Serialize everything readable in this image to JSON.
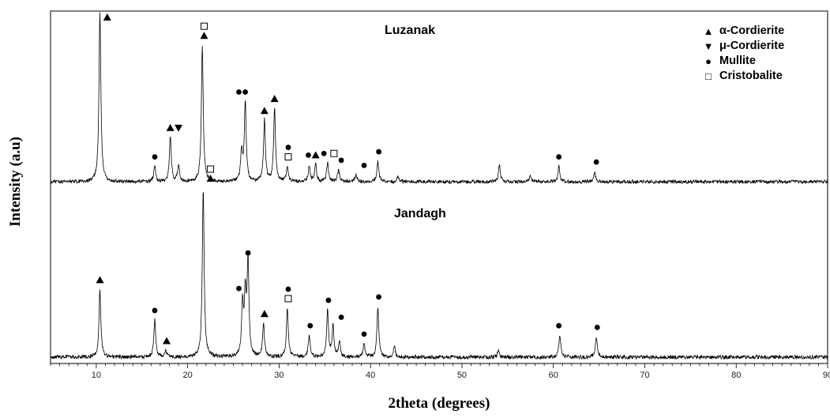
{
  "chart_data": {
    "type": "line",
    "title": "",
    "xlabel": "2theta (degrees)",
    "ylabel": "Intensity (a.u)",
    "xlim": [
      5,
      90
    ],
    "x_ticks": [
      "10",
      "20",
      "30",
      "40",
      "50",
      "60",
      "70",
      "80",
      "90"
    ],
    "grid": false,
    "legend_position": "top-right",
    "legend": [
      {
        "marker": "▲",
        "label": "α-Cordierite"
      },
      {
        "marker": "▼",
        "label": "μ-Cordierite"
      },
      {
        "marker": "●",
        "label": "Mullite"
      },
      {
        "marker": "□",
        "label": "Cristobalite"
      }
    ],
    "series": [
      {
        "name": "Luzanak",
        "peaks": [
          [
            10.4,
            1.0
          ],
          [
            16.4,
            0.09
          ],
          [
            18.1,
            0.26
          ],
          [
            19.0,
            0.1
          ],
          [
            21.6,
            0.8
          ],
          [
            25.9,
            0.18
          ],
          [
            26.3,
            0.47
          ],
          [
            28.4,
            0.36
          ],
          [
            29.5,
            0.43
          ],
          [
            30.9,
            0.09
          ],
          [
            33.3,
            0.09
          ],
          [
            34.0,
            0.1
          ],
          [
            35.3,
            0.11
          ],
          [
            36.5,
            0.07
          ],
          [
            38.4,
            0.04
          ],
          [
            40.8,
            0.12
          ],
          [
            43.0,
            0.03
          ],
          [
            54.1,
            0.1
          ],
          [
            57.5,
            0.04
          ],
          [
            60.6,
            0.09
          ],
          [
            64.5,
            0.06
          ]
        ]
      },
      {
        "name": "Jandagh",
        "peaks": [
          [
            10.4,
            0.4
          ],
          [
            16.4,
            0.22
          ],
          [
            17.6,
            0.04
          ],
          [
            21.7,
            1.0
          ],
          [
            26.0,
            0.3
          ],
          [
            26.3,
            0.35
          ],
          [
            26.6,
            0.56
          ],
          [
            28.3,
            0.2
          ],
          [
            30.9,
            0.29
          ],
          [
            33.3,
            0.13
          ],
          [
            35.3,
            0.28
          ],
          [
            35.9,
            0.18
          ],
          [
            36.6,
            0.09
          ],
          [
            39.3,
            0.08
          ],
          [
            40.8,
            0.3
          ],
          [
            42.6,
            0.07
          ],
          [
            54.0,
            0.04
          ],
          [
            60.7,
            0.13
          ],
          [
            64.7,
            0.12
          ]
        ]
      }
    ],
    "annotations": [
      {
        "series": "Luzanak",
        "x": 11.2,
        "markers": [
          "▲"
        ]
      },
      {
        "series": "Luzanak",
        "x": 16.4,
        "markers": [
          "●"
        ]
      },
      {
        "series": "Luzanak",
        "x": 18.1,
        "markers": [
          "▲"
        ]
      },
      {
        "series": "Luzanak",
        "x": 19.0,
        "markers": [
          "▼"
        ]
      },
      {
        "series": "Luzanak",
        "x": 21.8,
        "markers": [
          "▲",
          "□"
        ]
      },
      {
        "series": "Luzanak",
        "x": 25.6,
        "markers": [
          "●"
        ]
      },
      {
        "series": "Luzanak",
        "x": 26.3,
        "markers": [
          "●"
        ]
      },
      {
        "series": "Luzanak",
        "x": 28.4,
        "markers": [
          "▲"
        ]
      },
      {
        "series": "Luzanak",
        "x": 29.5,
        "markers": [
          "▲"
        ]
      },
      {
        "series": "Luzanak",
        "x": 31.0,
        "markers": [
          "□",
          "●"
        ]
      },
      {
        "series": "Luzanak",
        "x": 33.2,
        "markers": [
          "●"
        ]
      },
      {
        "series": "Luzanak",
        "x": 34.0,
        "markers": [
          "▲"
        ]
      },
      {
        "series": "Luzanak",
        "x": 34.9,
        "markers": [
          "●"
        ]
      },
      {
        "series": "Luzanak",
        "x": 36.0,
        "markers": [
          "□"
        ]
      },
      {
        "series": "Luzanak",
        "x": 36.8,
        "markers": [
          "●"
        ]
      },
      {
        "series": "Luzanak",
        "x": 39.3,
        "markers": [
          "●"
        ]
      },
      {
        "series": "Luzanak",
        "x": 40.9,
        "markers": [
          "●"
        ]
      },
      {
        "series": "Luzanak",
        "x": 60.6,
        "markers": [
          "●"
        ]
      },
      {
        "series": "Luzanak",
        "x": 64.7,
        "markers": [
          "●"
        ]
      },
      {
        "series": "Jandagh",
        "x": 10.4,
        "markers": [
          "▲"
        ]
      },
      {
        "series": "Jandagh",
        "x": 16.4,
        "markers": [
          "●"
        ]
      },
      {
        "series": "Jandagh",
        "x": 17.7,
        "markers": [
          "▲"
        ]
      },
      {
        "series": "Jandagh",
        "x": 22.5,
        "markers": [
          "▲",
          "□"
        ]
      },
      {
        "series": "Jandagh",
        "x": 25.6,
        "markers": [
          "●"
        ]
      },
      {
        "series": "Jandagh",
        "x": 26.6,
        "markers": [
          "●"
        ]
      },
      {
        "series": "Jandagh",
        "x": 28.4,
        "markers": [
          "▲"
        ]
      },
      {
        "series": "Jandagh",
        "x": 31.0,
        "markers": [
          "□",
          "●"
        ]
      },
      {
        "series": "Jandagh",
        "x": 33.4,
        "markers": [
          "●"
        ]
      },
      {
        "series": "Jandagh",
        "x": 35.4,
        "markers": [
          "●"
        ]
      },
      {
        "series": "Jandagh",
        "x": 36.8,
        "markers": [
          "●"
        ]
      },
      {
        "series": "Jandagh",
        "x": 39.3,
        "markers": [
          "●"
        ]
      },
      {
        "series": "Jandagh",
        "x": 40.9,
        "markers": [
          "●"
        ]
      },
      {
        "series": "Jandagh",
        "x": 60.6,
        "markers": [
          "●"
        ]
      },
      {
        "series": "Jandagh",
        "x": 64.8,
        "markers": [
          "●"
        ]
      }
    ]
  }
}
